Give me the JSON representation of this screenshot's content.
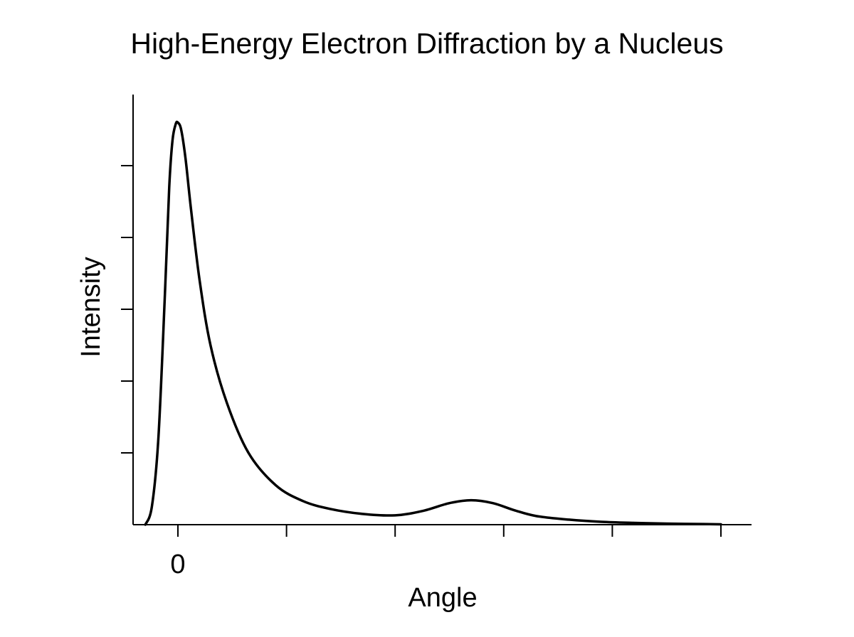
{
  "chart_data": {
    "type": "line",
    "title": "High-Energy Electron Diffraction by a Nucleus",
    "xlabel": "Angle",
    "ylabel": "Intensity",
    "xlim": [
      -0.4,
      5.3
    ],
    "ylim": [
      0,
      6.0
    ],
    "x_ticks": [
      0,
      1,
      2,
      3,
      4,
      5
    ],
    "x_tick_labels": [
      "0",
      "",
      "",
      "",
      "",
      ""
    ],
    "y_ticks": [
      1,
      2,
      3,
      4,
      5
    ],
    "y_tick_labels": [
      "",
      "",
      "",
      "",
      ""
    ],
    "grid": false,
    "series": [
      {
        "x": [
          -0.3,
          -0.24,
          -0.18,
          -0.12,
          -0.08,
          -0.05,
          -0.02,
          0.0,
          0.03,
          0.07,
          0.12,
          0.2,
          0.3,
          0.45,
          0.65,
          0.9,
          1.15,
          1.4,
          1.7,
          2.0,
          2.25,
          2.5,
          2.7,
          2.9,
          3.1,
          3.3,
          3.6,
          3.9,
          4.2,
          4.5,
          4.75,
          5.0
        ],
        "y": [
          0.0,
          0.25,
          1.2,
          3.2,
          4.7,
          5.35,
          5.58,
          5.6,
          5.5,
          5.1,
          4.4,
          3.4,
          2.5,
          1.7,
          1.0,
          0.55,
          0.33,
          0.22,
          0.15,
          0.13,
          0.19,
          0.3,
          0.34,
          0.3,
          0.2,
          0.12,
          0.07,
          0.04,
          0.025,
          0.015,
          0.01,
          0.005
        ]
      }
    ]
  }
}
